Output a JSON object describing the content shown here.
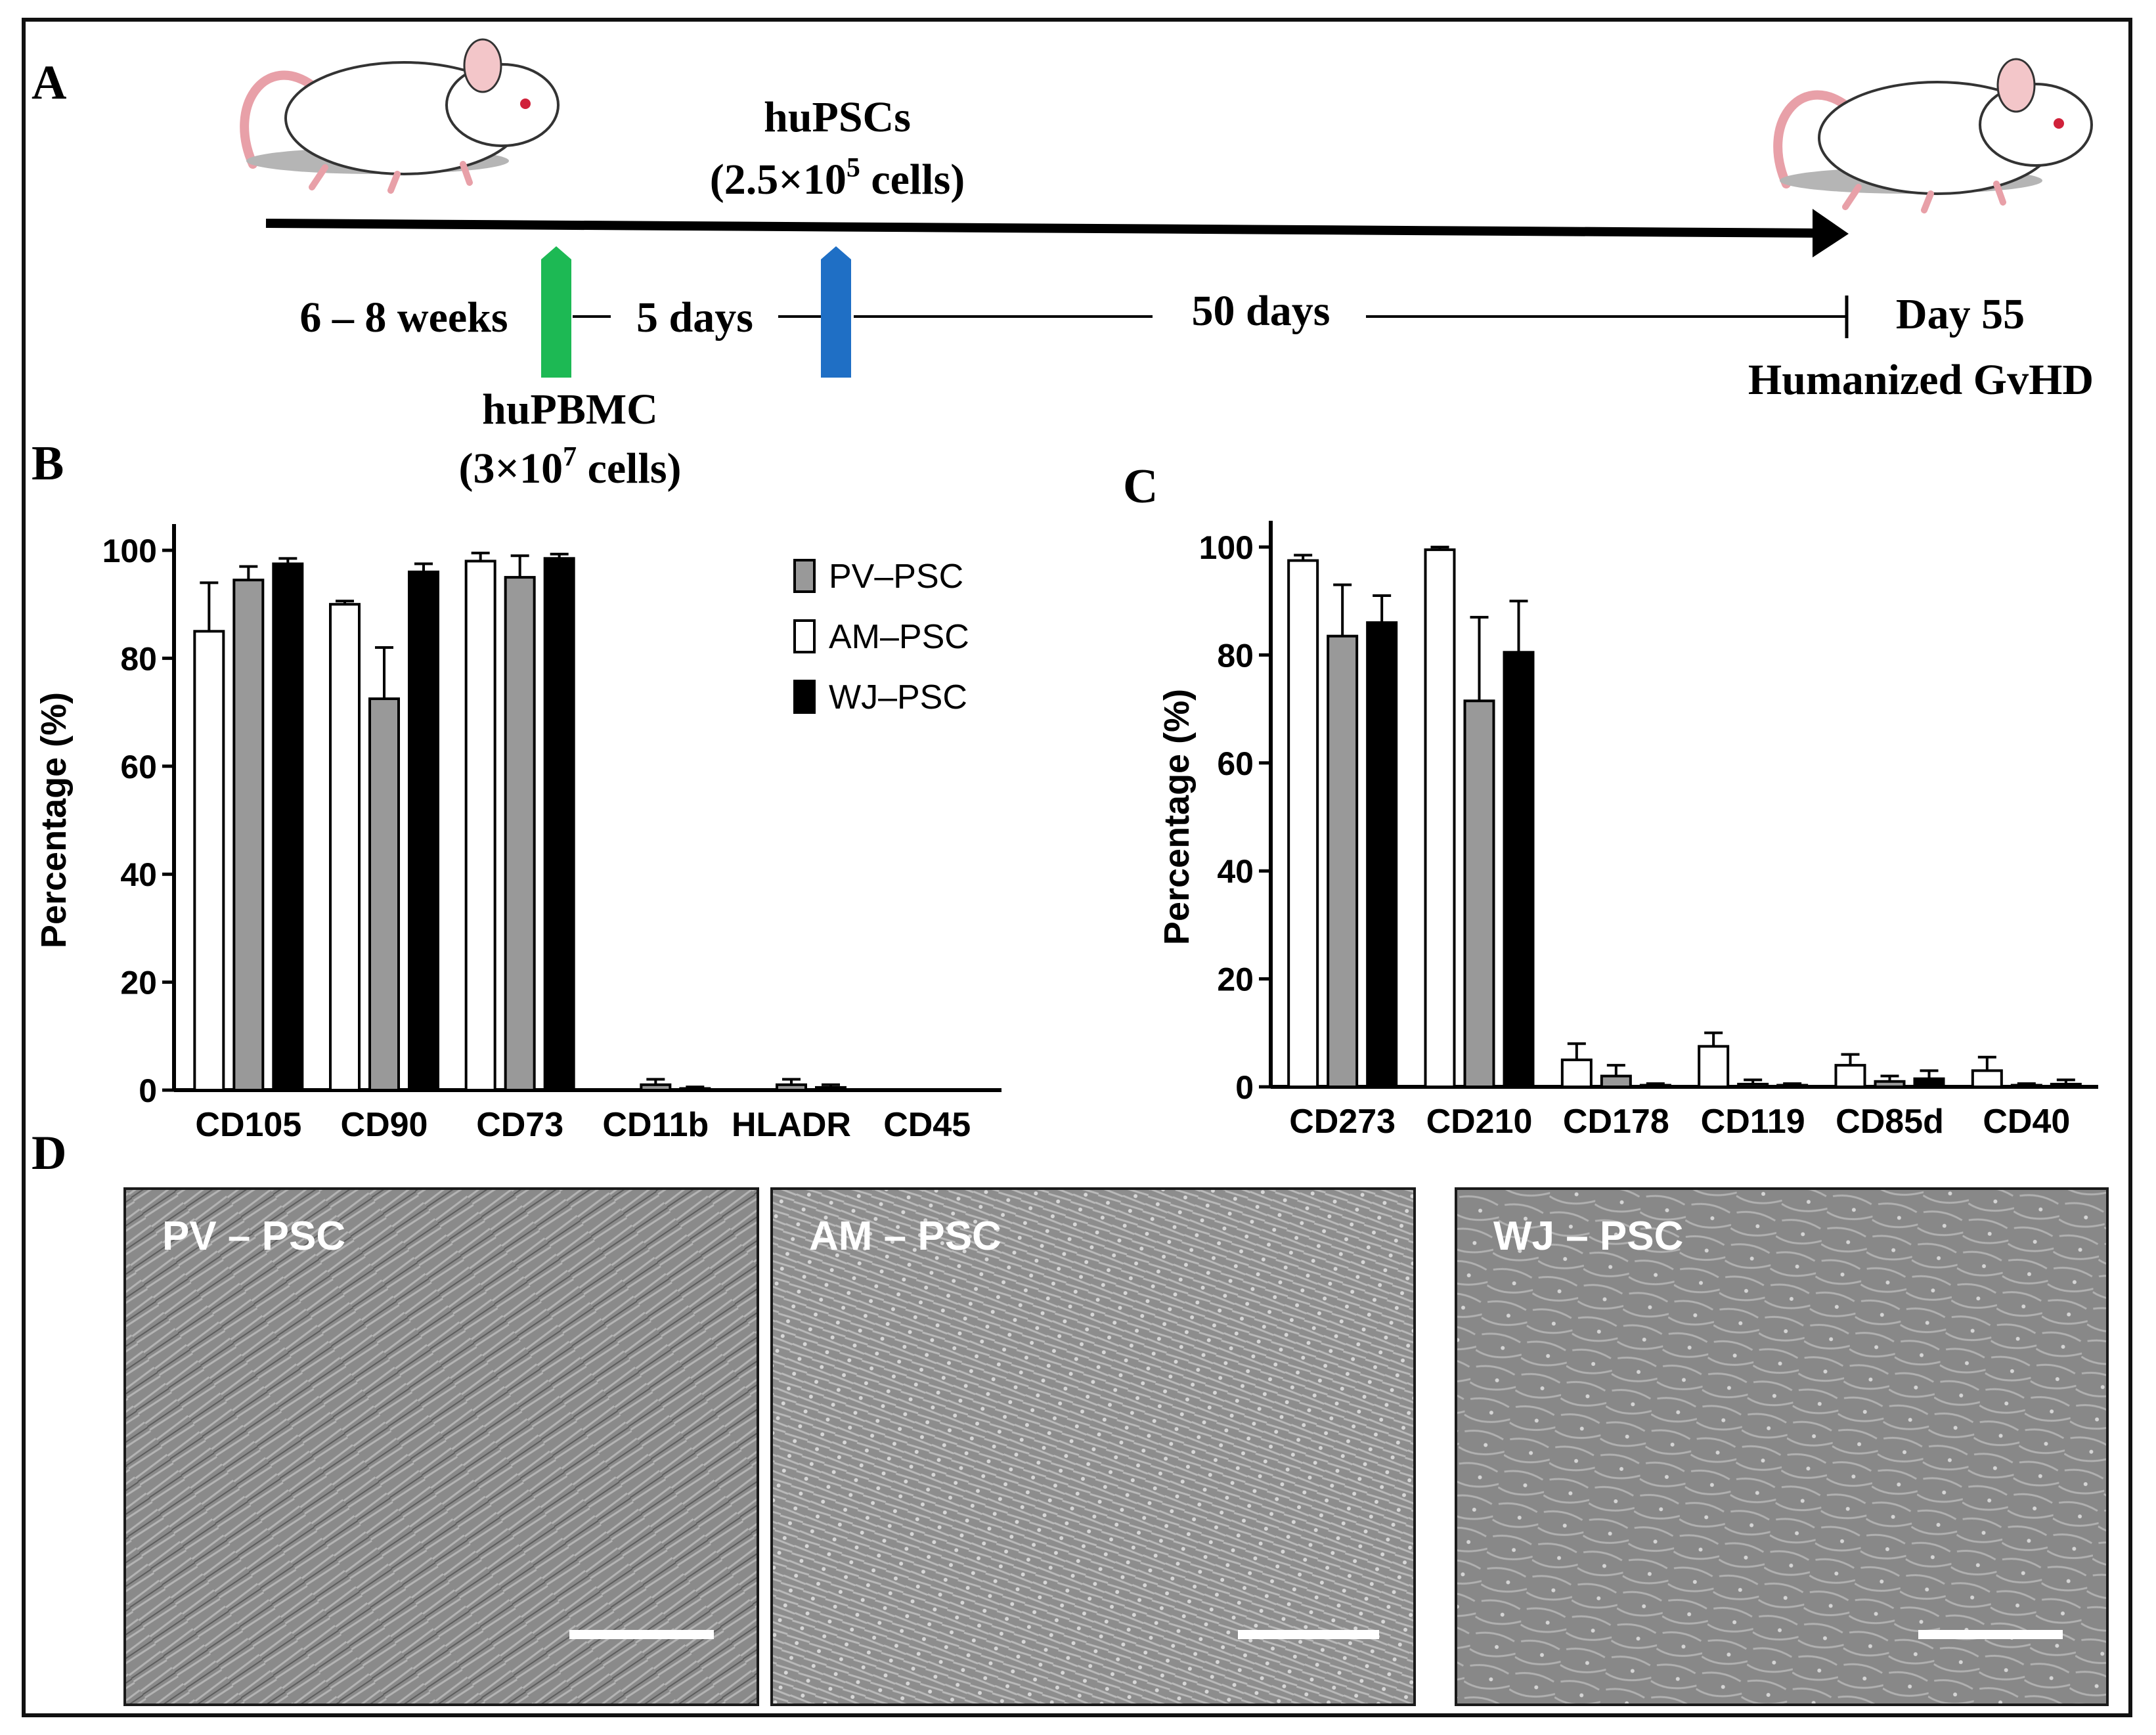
{
  "panels": {
    "a": "A",
    "b": "B",
    "c": "C",
    "d": "D"
  },
  "timeline": {
    "huPSCs_label": "huPSCs",
    "huPSCs_dose_prefix": "(2.5×10",
    "huPSCs_dose_exp": "5",
    "huPSCs_dose_suffix": " cells)",
    "age_label": "6 – 8 weeks",
    "interval1_label": "5 days",
    "interval2_label": "50 days",
    "end_label": "Day 55",
    "outcome_label": "Humanized GvHD",
    "huPBMC_label": "huPBMC",
    "huPBMC_dose_prefix": "(3×10",
    "huPBMC_dose_exp": "7",
    "huPBMC_dose_suffix": " cells)",
    "colors": {
      "pbmc_arrow": "#1db954",
      "psc_arrow": "#1f6fc5"
    }
  },
  "chart_data": [
    {
      "type": "bar",
      "panel": "B",
      "categories": [
        "CD105",
        "CD90",
        "CD73",
        "CD11b",
        "HLADR",
        "CD45"
      ],
      "ylabel": "Percentage (%)",
      "ylim": [
        0,
        100
      ],
      "yticks": [
        "0",
        "20",
        "40",
        "60",
        "80",
        "100"
      ],
      "legend": {
        "placement": "top-right",
        "items": [
          {
            "name": "PV–PSC",
            "color": "#999999"
          },
          {
            "name": "AM–PSC",
            "color": "#ffffff"
          },
          {
            "name": "WJ–PSC",
            "color": "#000000"
          }
        ]
      },
      "series": [
        {
          "name": "AM–PSC",
          "color": "#ffffff",
          "values": [
            85,
            90,
            98,
            0,
            0,
            0
          ],
          "errors": [
            9,
            0.6,
            1.5,
            0,
            0,
            0
          ]
        },
        {
          "name": "PV–PSC",
          "color": "#999999",
          "values": [
            94.5,
            72.5,
            95,
            1,
            1,
            0
          ],
          "errors": [
            2.5,
            9.5,
            4,
            1,
            1,
            0
          ]
        },
        {
          "name": "WJ–PSC",
          "color": "#000000",
          "values": [
            97.5,
            96,
            98.5,
            0.3,
            0.5,
            0
          ],
          "errors": [
            1,
            1.5,
            0.8,
            0.3,
            0.5,
            0
          ]
        }
      ]
    },
    {
      "type": "bar",
      "panel": "C",
      "categories": [
        "CD273",
        "CD210",
        "CD178",
        "CD119",
        "CD85d",
        "CD40"
      ],
      "ylabel": "Percentage (%)",
      "ylim": [
        0,
        100
      ],
      "yticks": [
        "0",
        "20",
        "40",
        "60",
        "80",
        "100"
      ],
      "series": [
        {
          "name": "AM–PSC",
          "color": "#ffffff",
          "values": [
            97.5,
            99.5,
            5,
            7.5,
            4,
            3
          ],
          "errors": [
            1,
            0.5,
            3,
            2.5,
            2,
            2.5
          ]
        },
        {
          "name": "PV–PSC",
          "color": "#999999",
          "values": [
            83.5,
            71.5,
            2,
            0.5,
            1,
            0.3
          ],
          "errors": [
            9.5,
            15.5,
            2,
            0.8,
            1,
            0.3
          ]
        },
        {
          "name": "WJ–PSC",
          "color": "#000000",
          "values": [
            86,
            80.5,
            0.3,
            0.3,
            1.5,
            0.5
          ],
          "errors": [
            5,
            9.5,
            0.3,
            0.3,
            1.5,
            0.8
          ]
        }
      ]
    }
  ],
  "micrographs": [
    {
      "label": "PV – PSC"
    },
    {
      "label": "AM – PSC"
    },
    {
      "label": "WJ – PSC"
    }
  ]
}
